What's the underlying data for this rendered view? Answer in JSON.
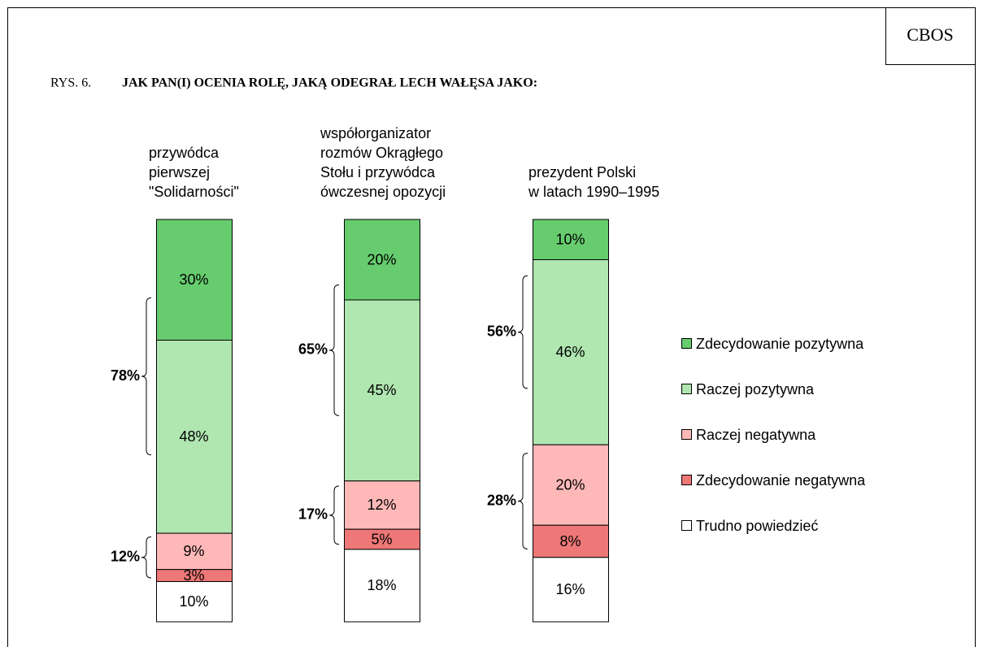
{
  "chart_data": {
    "type": "bar",
    "stacked": true,
    "source": "CBOS",
    "figure_number": "RYS. 6.",
    "title": "JAK PAN(I) OCENIA ROLĘ, JAKĄ ODEGRAŁ LECH WAŁĘSA JAKO:",
    "categories": [
      "przywódca\npierwszej\n\"Solidarności\"",
      "współorganizator\nrozmów Okrągłego\nStołu i przywódca\nówczesnej opozycji",
      "prezydent Polski\nw latach 1990–1995"
    ],
    "ylim": [
      0,
      100
    ],
    "series": [
      {
        "name": "Zdecydowanie pozytywna",
        "color": "#66cc6e",
        "values": [
          30,
          20,
          10
        ],
        "value_labels": [
          "30%",
          "20%",
          "10%"
        ]
      },
      {
        "name": "Raczej pozytywna",
        "color": "#b0e6b0",
        "values": [
          48,
          45,
          46
        ],
        "value_labels": [
          "48%",
          "45%",
          "46%"
        ]
      },
      {
        "name": "Raczej negatywna",
        "color": "#ffb8b8",
        "values": [
          9,
          12,
          20
        ],
        "value_labels": [
          "9%",
          "12%",
          "20%"
        ]
      },
      {
        "name": "Zdecydowanie negatywna",
        "color": "#ee7777",
        "values": [
          3,
          5,
          8
        ],
        "value_labels": [
          "3%",
          "5%",
          "8%"
        ]
      },
      {
        "name": "Trudno powiedzieć",
        "color": "#ffffff",
        "values": [
          10,
          18,
          16
        ],
        "value_labels": [
          "10%",
          "18%",
          "16%"
        ]
      }
    ],
    "positive_total": {
      "values": [
        78,
        65,
        56
      ],
      "value_labels": [
        "78%",
        "65%",
        "56%"
      ]
    },
    "negative_total": {
      "values": [
        12,
        17,
        28
      ],
      "value_labels": [
        "12%",
        "17%",
        "28%"
      ]
    }
  }
}
